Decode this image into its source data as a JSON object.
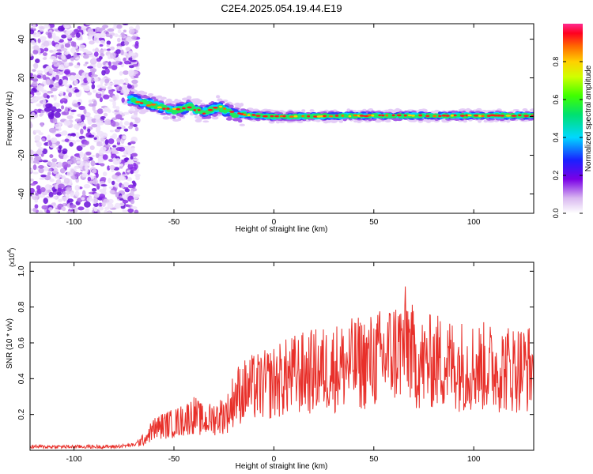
{
  "title": "C2E4.2025.054.19.44.E19",
  "chart_data": [
    {
      "type": "heatmap",
      "xlabel": "Height of straight line (km)",
      "ylabel": "Frequency (Hz)",
      "xlim": [
        -122,
        130
      ],
      "ylim": [
        -50,
        48
      ],
      "xticks": [
        -100,
        -50,
        0,
        50,
        100
      ],
      "yticks": [
        -40,
        -20,
        0,
        20,
        40
      ],
      "colorbar": {
        "label": "Normalized spectral amplitude",
        "range": [
          0,
          1
        ],
        "ticks": [
          "0.0",
          "0.2",
          "0.4",
          "0.6",
          "0.8"
        ]
      },
      "features": {
        "noise_region_x": [
          -122,
          -72
        ],
        "signal_track": [
          {
            "x": -72,
            "y": 9
          },
          {
            "x": -60,
            "y": 6
          },
          {
            "x": -50,
            "y": 3
          },
          {
            "x": -42,
            "y": 5
          },
          {
            "x": -35,
            "y": 2
          },
          {
            "x": -28,
            "y": 5
          },
          {
            "x": -20,
            "y": 1
          },
          {
            "x": -15,
            "y": 1
          },
          {
            "x": 0,
            "y": 0
          },
          {
            "x": 50,
            "y": 0.5
          },
          {
            "x": 100,
            "y": 0.5
          },
          {
            "x": 130,
            "y": 0.5
          }
        ]
      }
    },
    {
      "type": "line",
      "xlabel": "Height of straight line (km)",
      "ylabel": "SNR (10 * v/v)",
      "y_multiplier": "(x10^4)",
      "xlim": [
        -122,
        130
      ],
      "ylim": [
        0,
        1.05
      ],
      "xticks": [
        -100,
        -50,
        0,
        50,
        100
      ],
      "yticks": [
        0.2,
        0.4,
        0.6,
        0.8,
        1.0
      ],
      "color": "#e8302a",
      "series": [
        {
          "x": [
            -122,
            -100,
            -80,
            -70,
            -65,
            -60,
            -55,
            -50,
            -45,
            -40,
            -35,
            -30,
            -25,
            -22,
            -20,
            -15,
            -10,
            -5,
            0,
            10,
            20,
            30,
            40,
            50,
            55,
            60,
            65,
            67,
            70,
            75,
            80,
            90,
            100,
            110,
            120,
            130
          ],
          "values": [
            0.02,
            0.02,
            0.02,
            0.03,
            0.06,
            0.12,
            0.14,
            0.15,
            0.17,
            0.2,
            0.16,
            0.18,
            0.2,
            0.22,
            0.3,
            0.33,
            0.35,
            0.36,
            0.38,
            0.42,
            0.44,
            0.46,
            0.48,
            0.5,
            0.52,
            0.55,
            0.58,
            0.62,
            0.5,
            0.48,
            0.5,
            0.48,
            0.47,
            0.46,
            0.46,
            0.46
          ]
        }
      ]
    }
  ]
}
